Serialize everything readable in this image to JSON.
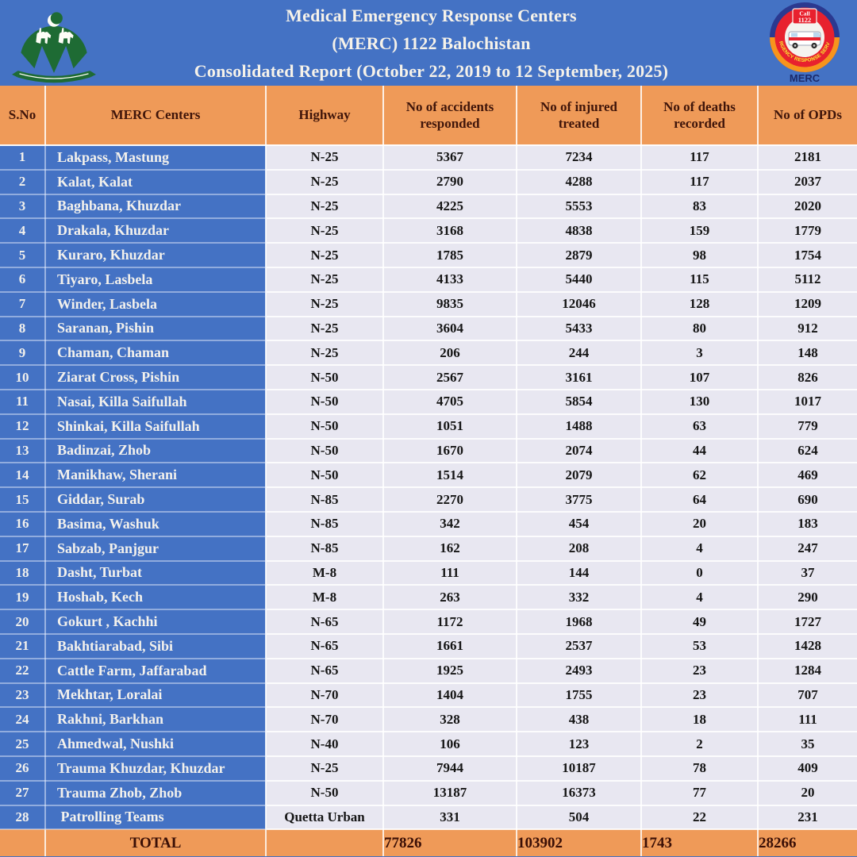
{
  "header": {
    "title_line1": "Medical Emergency Response Centers",
    "title_line2": "(MERC) 1122 Balochistan",
    "title_line3": "Consolidated Report (October 22, 2019 to 12 September, 2025)",
    "right_logo": {
      "call_badge_line1": "Call",
      "call_badge_line2": "1122",
      "ring_text": "EMERGENCY RESPONSE SERVICES",
      "label": "MERC"
    }
  },
  "colors": {
    "header_blue": "#4472C4",
    "table_orange": "#EF9A58",
    "cell_lavender": "#E8E7F1",
    "maroon_heading_text": "#3F150A",
    "title_text": "#F6F2E9",
    "logo_green": "#1E6B34",
    "logo_red": "#E8212E",
    "logo_navy": "#2B3990",
    "logo_orange": "#F7941D",
    "logo_yellow": "#F9ED32"
  },
  "table": {
    "columns": [
      "S.No",
      "MERC Centers",
      "Highway",
      "No of accidents responded",
      "No of injured treated",
      "No of deaths recorded",
      "No of OPDs"
    ],
    "rows": [
      {
        "sno": "1",
        "center": "Lakpass, Mastung",
        "highway": "N-25",
        "accidents": "5367",
        "injured": "7234",
        "deaths": "117",
        "opds": "2181"
      },
      {
        "sno": "2",
        "center": "Kalat, Kalat",
        "highway": "N-25",
        "accidents": "2790",
        "injured": "4288",
        "deaths": "117",
        "opds": "2037"
      },
      {
        "sno": "3",
        "center": "Baghbana, Khuzdar",
        "highway": "N-25",
        "accidents": "4225",
        "injured": "5553",
        "deaths": "83",
        "opds": "2020"
      },
      {
        "sno": "4",
        "center": "Drakala, Khuzdar",
        "highway": "N-25",
        "accidents": "3168",
        "injured": "4838",
        "deaths": "159",
        "opds": "1779"
      },
      {
        "sno": "5",
        "center": "Kuraro, Khuzdar",
        "highway": "N-25",
        "accidents": "1785",
        "injured": "2879",
        "deaths": "98",
        "opds": "1754"
      },
      {
        "sno": "6",
        "center": "Tiyaro, Lasbela",
        "highway": "N-25",
        "accidents": "4133",
        "injured": "5440",
        "deaths": "115",
        "opds": "5112"
      },
      {
        "sno": "7",
        "center": "Winder, Lasbela",
        "highway": "N-25",
        "accidents": "9835",
        "injured": "12046",
        "deaths": "128",
        "opds": "1209"
      },
      {
        "sno": "8",
        "center": "Saranan, Pishin",
        "highway": "N-25",
        "accidents": "3604",
        "injured": "5433",
        "deaths": "80",
        "opds": "912"
      },
      {
        "sno": "9",
        "center": "Chaman, Chaman",
        "highway": "N-25",
        "accidents": "206",
        "injured": "244",
        "deaths": "3",
        "opds": "148"
      },
      {
        "sno": "10",
        "center": "Ziarat Cross, Pishin",
        "highway": "N-50",
        "accidents": "2567",
        "injured": "3161",
        "deaths": "107",
        "opds": "826"
      },
      {
        "sno": "11",
        "center": "Nasai, Killa Saifullah",
        "highway": "N-50",
        "accidents": "4705",
        "injured": "5854",
        "deaths": "130",
        "opds": "1017"
      },
      {
        "sno": "12",
        "center": "Shinkai, Killa Saifullah",
        "highway": "N-50",
        "accidents": "1051",
        "injured": "1488",
        "deaths": "63",
        "opds": "779"
      },
      {
        "sno": "13",
        "center": "Badinzai, Zhob",
        "highway": "N-50",
        "accidents": "1670",
        "injured": "2074",
        "deaths": "44",
        "opds": "624"
      },
      {
        "sno": "14",
        "center": "Manikhaw, Sherani",
        "highway": "N-50",
        "accidents": "1514",
        "injured": "2079",
        "deaths": "62",
        "opds": "469"
      },
      {
        "sno": "15",
        "center": "Giddar, Surab",
        "highway": "N-85",
        "accidents": "2270",
        "injured": "3775",
        "deaths": "64",
        "opds": "690"
      },
      {
        "sno": "16",
        "center": "Basima, Washuk",
        "highway": "N-85",
        "accidents": "342",
        "injured": "454",
        "deaths": "20",
        "opds": "183"
      },
      {
        "sno": "17",
        "center": "Sabzab, Panjgur",
        "highway": "N-85",
        "accidents": "162",
        "injured": "208",
        "deaths": "4",
        "opds": "247"
      },
      {
        "sno": "18",
        "center": "Dasht, Turbat",
        "highway": "M-8",
        "accidents": "111",
        "injured": "144",
        "deaths": "0",
        "opds": "37"
      },
      {
        "sno": "19",
        "center": "Hoshab, Kech",
        "highway": "M-8",
        "accidents": "263",
        "injured": "332",
        "deaths": "4",
        "opds": "290"
      },
      {
        "sno": "20",
        "center": "Gokurt , Kachhi",
        "highway": "N-65",
        "accidents": "1172",
        "injured": "1968",
        "deaths": "49",
        "opds": "1727"
      },
      {
        "sno": "21",
        "center": "Bakhtiarabad, Sibi",
        "highway": "N-65",
        "accidents": "1661",
        "injured": "2537",
        "deaths": "53",
        "opds": "1428"
      },
      {
        "sno": "22",
        "center": "Cattle Farm, Jaffarabad",
        "highway": "N-65",
        "accidents": "1925",
        "injured": "2493",
        "deaths": "23",
        "opds": "1284"
      },
      {
        "sno": "23",
        "center": "Mekhtar, Loralai",
        "highway": "N-70",
        "accidents": "1404",
        "injured": "1755",
        "deaths": "23",
        "opds": "707"
      },
      {
        "sno": "24",
        "center": "Rakhni, Barkhan",
        "highway": "N-70",
        "accidents": "328",
        "injured": "438",
        "deaths": "18",
        "opds": "111"
      },
      {
        "sno": "25",
        "center": "Ahmedwal, Nushki",
        "highway": "N-40",
        "accidents": "106",
        "injured": "123",
        "deaths": "2",
        "opds": "35"
      },
      {
        "sno": "26",
        "center": "Trauma Khuzdar, Khuzdar",
        "highway": "N-25",
        "accidents": "7944",
        "injured": "10187",
        "deaths": "78",
        "opds": "409"
      },
      {
        "sno": "27",
        "center": "Trauma Zhob, Zhob",
        "highway": "N-50",
        "accidents": "13187",
        "injured": "16373",
        "deaths": "77",
        "opds": "20"
      },
      {
        "sno": "28",
        "center": " Patrolling Teams",
        "highway": "Quetta Urban",
        "accidents": "331",
        "injured": "504",
        "deaths": "22",
        "opds": "231"
      }
    ],
    "total": {
      "label": "TOTAL",
      "accidents": "77826",
      "injured": "103902",
      "deaths": "1743",
      "opds": "28266"
    }
  }
}
